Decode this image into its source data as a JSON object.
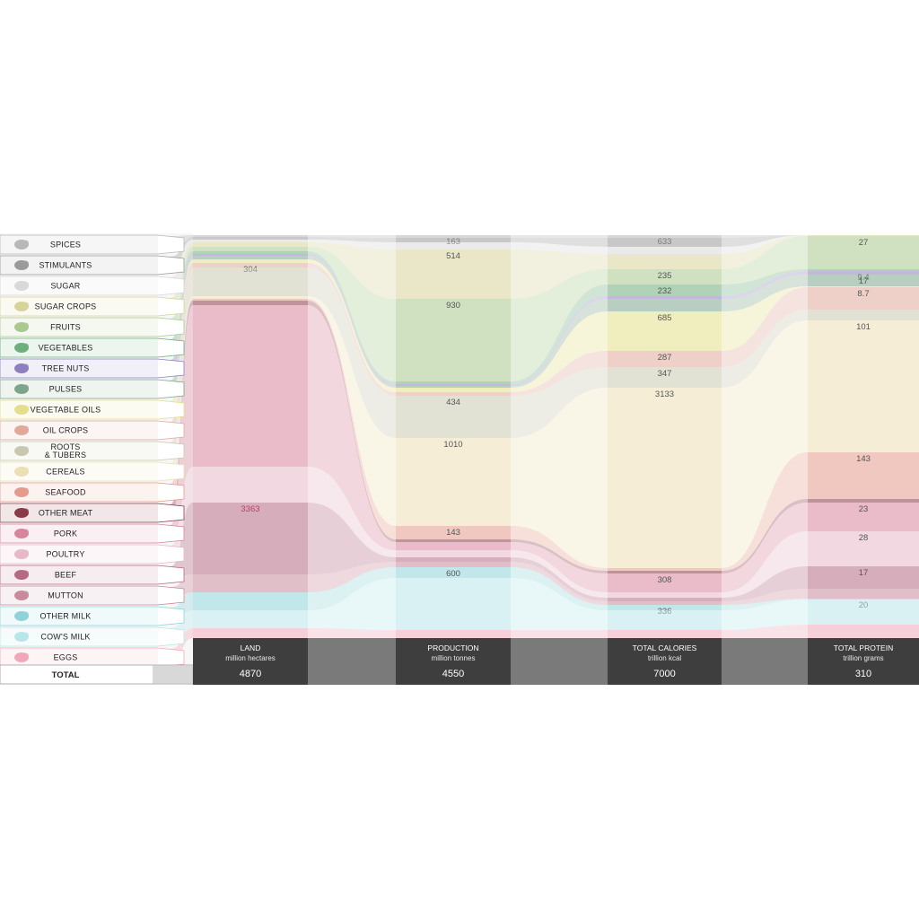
{
  "chart_data": {
    "type": "sankey",
    "columns": [
      {
        "key": "land",
        "title": "LAND",
        "unit": "million hectares",
        "total": "4870"
      },
      {
        "key": "production",
        "title": "PRODUCTION",
        "unit": "million tonnes",
        "total": "4550"
      },
      {
        "key": "calories",
        "title": "TOTAL CALORIES",
        "unit": "trillion kcal",
        "total": "7000"
      },
      {
        "key": "protein",
        "title": "TOTAL PROTEIN",
        "unit": "trillion grams",
        "total": "310"
      }
    ],
    "categories": [
      {
        "name": "SPICES",
        "icon": "spices-icon",
        "color": "#b8b8b8",
        "values": {
          "land": null,
          "production": null,
          "calories": null,
          "protein": null
        },
        "labels": {
          "land": "",
          "production": "163",
          "calories": "633",
          "protein": ""
        }
      },
      {
        "name": "STIMULANTS",
        "icon": "stimulants-icon",
        "color": "#9a9a9a",
        "values": {
          "land": null,
          "production": null,
          "calories": null,
          "protein": null
        },
        "labels": {
          "land": "",
          "production": "",
          "calories": "",
          "protein": ""
        }
      },
      {
        "name": "SUGAR",
        "icon": "sugar-icon",
        "color": "#d8d8d8",
        "values": {
          "land": null,
          "production": null,
          "calories": null,
          "protein": null
        },
        "labels": {
          "land": "",
          "production": "",
          "calories": "",
          "protein": ""
        }
      },
      {
        "name": "SUGAR CROPS",
        "icon": "sugar-crops-icon",
        "color": "#d7d49a",
        "values": {
          "land": null,
          "production": 514,
          "calories": null,
          "protein": null
        },
        "labels": {
          "land": "",
          "production": "514",
          "calories": "",
          "protein": ""
        }
      },
      {
        "name": "FRUITS",
        "icon": "fruits-icon",
        "color": "#a9c98e",
        "values": {
          "land": null,
          "production": 930,
          "calories": 235,
          "protein": 27
        },
        "labels": {
          "land": "",
          "production": "930",
          "calories": "235",
          "protein": "27"
        }
      },
      {
        "name": "VEGETABLES",
        "icon": "vegetables-icon",
        "color": "#6fae7e",
        "values": {
          "land": null,
          "production": null,
          "calories": 232,
          "protein": null
        },
        "labels": {
          "land": "",
          "production": "",
          "calories": "232",
          "protein": ""
        }
      },
      {
        "name": "TREE NUTS",
        "icon": "tree-nuts-icon",
        "color": "#8e7fc0",
        "values": {
          "land": null,
          "production": null,
          "calories": null,
          "protein": 9.4
        },
        "labels": {
          "land": "",
          "production": "",
          "calories": "",
          "protein": "9.4"
        }
      },
      {
        "name": "PULSES",
        "icon": "pulses-icon",
        "color": "#7ea58c",
        "values": {
          "land": null,
          "production": null,
          "calories": null,
          "protein": 17
        },
        "labels": {
          "land": "",
          "production": "",
          "calories": "",
          "protein": "17"
        }
      },
      {
        "name": "VEGETABLE OILS",
        "icon": "vegetable-oils-icon",
        "color": "#e4df8a",
        "values": {
          "land": null,
          "production": null,
          "calories": 685,
          "protein": null
        },
        "labels": {
          "land": "",
          "production": "",
          "calories": "685",
          "protein": ""
        }
      },
      {
        "name": "OIL CROPS",
        "icon": "oil-crops-icon",
        "color": "#e0a99c",
        "values": {
          "land": 304,
          "production": null,
          "calories": 287,
          "protein": 8.7
        },
        "labels": {
          "land": "304",
          "production": "",
          "calories": "287",
          "protein": "8.7"
        }
      },
      {
        "name": "ROOTS\n& TUBERS",
        "icon": "roots-tubers-icon",
        "color": "#c8c8b0",
        "values": {
          "land": null,
          "production": 434,
          "calories": 347,
          "protein": null
        },
        "labels": {
          "land": "",
          "production": "434",
          "calories": "347",
          "protein": ""
        }
      },
      {
        "name": "CEREALS",
        "icon": "cereals-icon",
        "color": "#ecdfb4",
        "values": {
          "land": null,
          "production": 1010,
          "calories": 3133,
          "protein": 101
        },
        "labels": {
          "land": "",
          "production": "1010",
          "calories": "3133",
          "protein": "101"
        }
      },
      {
        "name": "SEAFOOD",
        "icon": "seafood-icon",
        "color": "#e59a8c",
        "values": {
          "land": null,
          "production": 143,
          "calories": null,
          "protein": 143
        },
        "labels": {
          "land": "",
          "production": "143",
          "calories": "",
          "protein": "143"
        }
      },
      {
        "name": "OTHER MEAT",
        "icon": "other-meat-icon",
        "color": "#8b3a4a",
        "values": {
          "land": null,
          "production": null,
          "calories": null,
          "protein": null
        },
        "labels": {
          "land": "",
          "production": "",
          "calories": "",
          "protein": ""
        }
      },
      {
        "name": "PORK",
        "icon": "pork-icon",
        "color": "#d9839c",
        "values": {
          "land": null,
          "production": null,
          "calories": 308,
          "protein": 23
        },
        "labels": {
          "land": "",
          "production": "",
          "calories": "308",
          "protein": "23"
        }
      },
      {
        "name": "POULTRY",
        "icon": "poultry-icon",
        "color": "#e7b8c7",
        "values": {
          "land": null,
          "production": null,
          "calories": null,
          "protein": 28
        },
        "labels": {
          "land": "",
          "production": "",
          "calories": "",
          "protein": "28"
        }
      },
      {
        "name": "BEEF",
        "icon": "beef-icon",
        "color": "#b56a84",
        "values": {
          "land": 3363,
          "production": null,
          "calories": null,
          "protein": 17
        },
        "labels": {
          "land": "3363",
          "production": "",
          "calories": "",
          "protein": "17"
        }
      },
      {
        "name": "MUTTON",
        "icon": "mutton-icon",
        "color": "#c98a9c",
        "values": {
          "land": null,
          "production": null,
          "calories": null,
          "protein": null
        },
        "labels": {
          "land": "",
          "production": "",
          "calories": "",
          "protein": ""
        }
      },
      {
        "name": "OTHER MILK",
        "icon": "other-milk-icon",
        "color": "#8fd3d8",
        "values": {
          "land": null,
          "production": 600,
          "calories": 336,
          "protein": 20
        },
        "labels": {
          "land": "",
          "production": "600",
          "calories": "336",
          "protein": "20"
        }
      },
      {
        "name": "COW'S MILK",
        "icon": "cows-milk-icon",
        "color": "#b9e6ea",
        "values": {
          "land": null,
          "production": null,
          "calories": null,
          "protein": null
        },
        "labels": {
          "land": "",
          "production": "",
          "calories": "",
          "protein": ""
        }
      },
      {
        "name": "EGGS",
        "icon": "eggs-icon",
        "color": "#f0a8b8",
        "values": {
          "land": null,
          "production": null,
          "calories": null,
          "protein": null
        },
        "labels": {
          "land": "",
          "production": "",
          "calories": "",
          "protein": ""
        }
      }
    ],
    "total_label": "TOTAL"
  }
}
